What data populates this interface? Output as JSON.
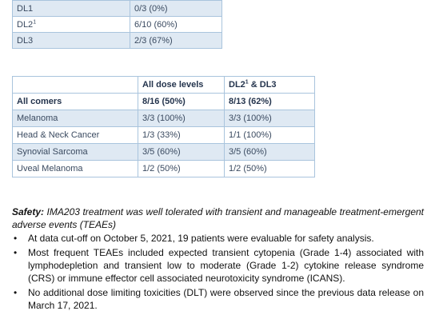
{
  "dose_table": {
    "rows": [
      {
        "label": "DL1",
        "sup": "",
        "value": "0/3 (0%)"
      },
      {
        "label": "DL2",
        "sup": "1",
        "value": "6/10 (60%)"
      },
      {
        "label": "DL3",
        "sup": "",
        "value": "2/3 (67%)"
      }
    ]
  },
  "response_table": {
    "header": {
      "col1": "All dose levels",
      "col2_prefix": "DL2",
      "col2_sup": "1",
      "col2_suffix": " & DL3"
    },
    "rows": [
      {
        "label": "All comers",
        "all_levels": "8/16 (50%)",
        "dl2_dl3": "8/13 (62%)"
      },
      {
        "label": "Melanoma",
        "all_levels": "3/3 (100%)",
        "dl2_dl3": "3/3 (100%)"
      },
      {
        "label": "Head & Neck Cancer",
        "all_levels": "1/3 (33%)",
        "dl2_dl3": "1/1 (100%)"
      },
      {
        "label": "Synovial Sarcoma",
        "all_levels": "3/5 (60%)",
        "dl2_dl3": "3/5 (60%)"
      },
      {
        "label": "Uveal Melanoma",
        "all_levels": "1/2 (50%)",
        "dl2_dl3": "1/2 (50%)"
      }
    ]
  },
  "safety": {
    "heading": "Safety:",
    "intro": " IMA203 treatment was well tolerated with transient and manageable treatment-emergent adverse events (TEAEs)",
    "bullet_symbol": "•",
    "bullets": [
      "At data cut-off on October 5, 2021, 19 patients were evaluable for safety analysis.",
      "Most frequent TEAEs included expected transient cytopenia (Grade 1-4) associated with lymphodepletion and transient low to moderate (Grade 1-2) cytokine release syndrome (CRS) or immune effector cell associated neurotoxicity syndrome (ICANS).",
      "No additional dose limiting toxicities (DLT) were observed since the previous data release on March 17, 2021."
    ]
  }
}
